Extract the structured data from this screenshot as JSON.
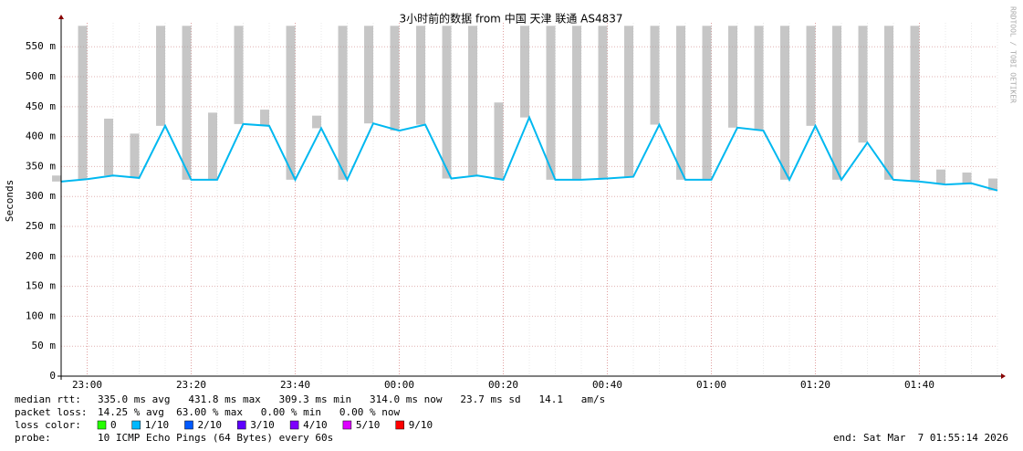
{
  "chart_data": {
    "type": "smokeping",
    "title": "3小时前的数据 from 中国 天津 联通 AS4837",
    "y_label": "Seconds",
    "side_text": "RRDTOOL / TOBI OETIKER",
    "x": [
      "22:55",
      "23:00",
      "23:05",
      "23:10",
      "23:15",
      "23:20",
      "23:25",
      "23:30",
      "23:35",
      "23:40",
      "23:45",
      "23:50",
      "23:55",
      "00:00",
      "00:05",
      "00:10",
      "00:15",
      "00:20",
      "00:25",
      "00:30",
      "00:35",
      "00:40",
      "00:45",
      "00:50",
      "00:55",
      "01:00",
      "01:05",
      "01:10",
      "01:15",
      "01:20",
      "01:25",
      "01:30",
      "01:35",
      "01:40",
      "01:45",
      "01:50",
      "01:55"
    ],
    "series": [
      {
        "name": "median",
        "color": "#00b8f0",
        "values": [
          0.325,
          0.329,
          0.335,
          0.331,
          0.418,
          0.328,
          0.328,
          0.421,
          0.418,
          0.328,
          0.414,
          0.328,
          0.422,
          0.41,
          0.42,
          0.33,
          0.335,
          0.328,
          0.432,
          0.328,
          0.328,
          0.33,
          0.333,
          0.42,
          0.328,
          0.328,
          0.415,
          0.41,
          0.328,
          0.418,
          0.328,
          0.39,
          0.328,
          0.325,
          0.32,
          0.322,
          0.31
        ]
      },
      {
        "name": "max",
        "color": "#a0a0a0",
        "values": [
          0.335,
          0.585,
          0.43,
          0.405,
          0.585,
          0.585,
          0.44,
          0.585,
          0.445,
          0.585,
          0.435,
          0.585,
          0.585,
          0.585,
          0.585,
          0.585,
          0.585,
          0.457,
          0.585,
          0.585,
          0.585,
          0.585,
          0.585,
          0.585,
          0.585,
          0.585,
          0.585,
          0.585,
          0.585,
          0.585,
          0.585,
          0.585,
          0.585,
          0.585,
          0.345,
          0.34,
          0.33
        ]
      }
    ],
    "xlim": [
      "22:55",
      "01:55"
    ],
    "xticks": [
      "23:00",
      "23:20",
      "23:40",
      "00:00",
      "00:20",
      "00:40",
      "01:00",
      "01:20",
      "01:40"
    ],
    "ylim": [
      0,
      0.59
    ],
    "yticks": [
      0,
      {
        "value": 0.05,
        "label": "50 m"
      },
      {
        "value": 0.1,
        "label": "100 m"
      },
      {
        "value": 0.15,
        "label": "150 m"
      },
      {
        "value": 0.2,
        "label": "200 m"
      },
      {
        "value": 0.25,
        "label": "250 m"
      },
      {
        "value": 0.3,
        "label": "300 m"
      },
      {
        "value": 0.35,
        "label": "350 m"
      },
      {
        "value": 0.4,
        "label": "400 m"
      },
      {
        "value": 0.45,
        "label": "450 m"
      },
      {
        "value": 0.5,
        "label": "500 m"
      },
      {
        "value": 0.55,
        "label": "550 m"
      }
    ],
    "grid": true,
    "stats": [
      {
        "label": "median rtt:",
        "text": "335.0 ms avg   431.8 ms max   309.3 ms min   314.0 ms now   23.7 ms sd   14.1   am/s"
      },
      {
        "label": "packet loss:",
        "text": "14.25 % avg  63.00 % max   0.00 % min   0.00 % now"
      }
    ],
    "loss_label": "loss color:",
    "loss_colors": [
      {
        "name": "0",
        "color": "#26ff00"
      },
      {
        "name": "1/10",
        "color": "#00b8ff"
      },
      {
        "name": "2/10",
        "color": "#0059ff"
      },
      {
        "name": "3/10",
        "color": "#5e00ff"
      },
      {
        "name": "4/10",
        "color": "#7e00ff"
      },
      {
        "name": "5/10",
        "color": "#dd00ff"
      },
      {
        "name": "9/10",
        "color": "#ff0000"
      }
    ],
    "probe_label": "probe:",
    "probe": "10 ICMP Echo Pings (64 Bytes) every 60s",
    "end": "end: Sat Mar  7 01:55:14 2026"
  }
}
